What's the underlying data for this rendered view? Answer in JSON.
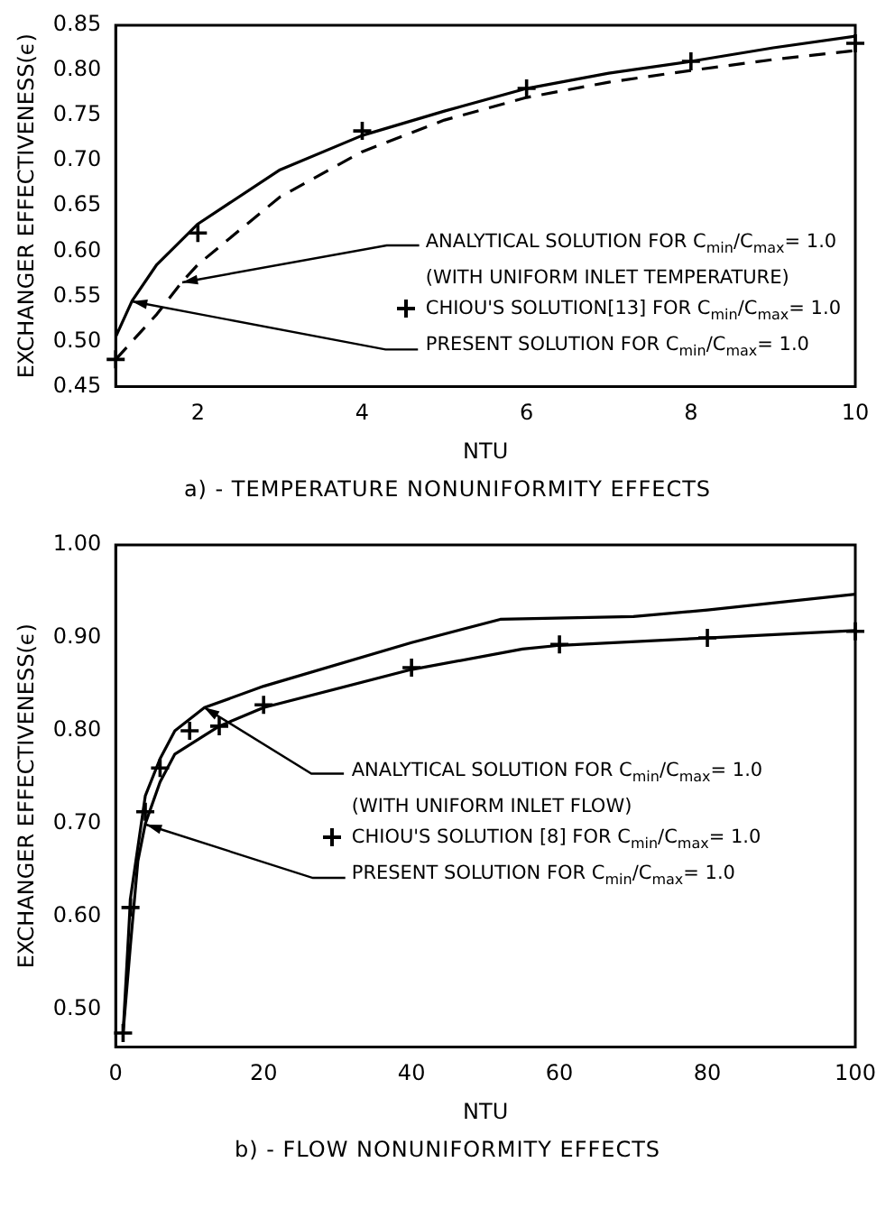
{
  "chart_data": [
    {
      "type": "line",
      "title": "a) - TEMPERATURE NONUNIFORMITY EFFECTS",
      "xlabel": "NTU",
      "ylabel": "EXCHANGER EFFECTIVENESS(ϵ)",
      "xlim": [
        1,
        10
      ],
      "xticks": [
        2,
        4,
        6,
        8,
        10
      ],
      "ylim": [
        0.45,
        0.85
      ],
      "yticks": [
        {
          "value": 0.45,
          "label": "0.45"
        },
        {
          "value": 0.5,
          "label": "0.50"
        },
        {
          "value": 0.55,
          "label": "0.55"
        },
        {
          "value": 0.6,
          "label": "0.60"
        },
        {
          "value": 0.65,
          "label": "0.65"
        },
        {
          "value": 0.7,
          "label": "0.70"
        },
        {
          "value": 0.75,
          "label": "0.75"
        },
        {
          "value": 0.8,
          "label": "0.80"
        },
        {
          "value": 0.85,
          "label": "0.85"
        }
      ],
      "grid": false,
      "legend": "bottom right",
      "series": [
        {
          "color": "#000000",
          "line_style": "dashed",
          "x": [
            1,
            1.5,
            1.8,
            2,
            3,
            4,
            5,
            6,
            7,
            8,
            9,
            10
          ],
          "values": [
            0.48,
            0.53,
            0.565,
            0.585,
            0.66,
            0.71,
            0.745,
            0.77,
            0.787,
            0.8,
            0.812,
            0.822
          ]
        },
        {
          "name": "CHIOU'S SOLUTION[13] FOR C$_{min}$/C$_{max}$= 1.0",
          "color": "#000000",
          "type": "scatter",
          "marker": "cross",
          "x": [
            1,
            2,
            4,
            6,
            8,
            10
          ],
          "values": [
            0.48,
            0.62,
            0.733,
            0.78,
            0.81,
            0.83
          ]
        },
        {
          "color": "#000000",
          "line_style": "solid",
          "x": [
            1,
            1.2,
            1.5,
            2,
            3,
            4,
            5,
            6,
            7,
            8,
            9,
            10
          ],
          "values": [
            0.505,
            0.545,
            0.585,
            0.63,
            0.69,
            0.728,
            0.755,
            0.78,
            0.797,
            0.81,
            0.825,
            0.838
          ]
        }
      ],
      "annotations": [
        {
          "text": "ANALYTICAL SOLUTION FOR C$_{min}$/C$_{max}$= 1.0",
          "x": 1.8,
          "y": 0.565
        },
        "(WITH UNIFORM INLET TEMPERATURE)",
        {
          "text": "PRESENT SOLUTION FOR C$_{min}$/C$_{max}$= 1.0",
          "x": 1.2,
          "y": 0.545
        }
      ]
    },
    {
      "type": "line",
      "title": "b) - FLOW NONUNIFORMITY EFFECTS",
      "xlabel": "NTU",
      "ylabel": "EXCHANGER EFFECTIVENESS(ϵ)",
      "xlim": [
        0,
        100
      ],
      "xticks": [
        0,
        20,
        40,
        60,
        80,
        100
      ],
      "ylim": [
        0.46,
        1.0
      ],
      "yticks": [
        {
          "value": 0.5,
          "label": "0.50"
        },
        {
          "value": 0.6,
          "label": "0.60"
        },
        {
          "value": 0.7,
          "label": "0.70"
        },
        {
          "value": 0.8,
          "label": "0.80"
        },
        {
          "value": 0.9,
          "label": "0.90"
        },
        {
          "value": 1.0,
          "label": "1.00"
        }
      ],
      "grid": false,
      "legend": "bottom right",
      "series": [
        {
          "color": "#000000",
          "line_style": "solid",
          "x": [
            1,
            2,
            4,
            6,
            8,
            12,
            20,
            40,
            52,
            70,
            80,
            100
          ],
          "values": [
            0.475,
            0.62,
            0.73,
            0.77,
            0.8,
            0.825,
            0.848,
            0.895,
            0.92,
            0.923,
            0.93,
            0.947
          ]
        },
        {
          "name": "CHIOU'S SOLUTION [8] FOR C$_{min}$/C$_{max}$= 1.0",
          "color": "#000000",
          "type": "scatter",
          "marker": "cross",
          "x": [
            1,
            2,
            4,
            6,
            10,
            14,
            20,
            40,
            60,
            80,
            100
          ],
          "values": [
            0.475,
            0.61,
            0.713,
            0.76,
            0.8,
            0.805,
            0.828,
            0.868,
            0.893,
            0.9,
            0.907
          ]
        },
        {
          "color": "#000000",
          "line_style": "solid",
          "x": [
            1,
            2,
            3,
            4,
            6,
            8,
            12,
            14,
            20,
            40,
            55,
            60,
            80,
            100
          ],
          "values": [
            0.475,
            0.57,
            0.66,
            0.7,
            0.745,
            0.775,
            0.795,
            0.805,
            0.825,
            0.866,
            0.888,
            0.892,
            0.9,
            0.908
          ]
        }
      ],
      "annotations": [
        {
          "text": "ANALYTICAL SOLUTION FOR C$_{min}$/C$_{max}$= 1.0",
          "x": 12,
          "y": 0.825
        },
        "(WITH UNIFORM INLET FLOW)",
        {
          "text": "PRESENT SOLUTION FOR C$_{min}$/C$_{max}$= 1.0",
          "x": 4,
          "y": 0.7
        }
      ]
    }
  ]
}
